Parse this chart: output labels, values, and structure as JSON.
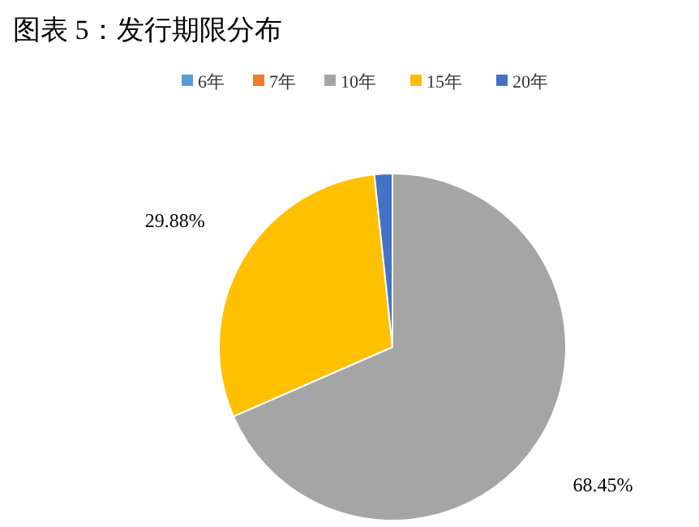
{
  "chart_data": {
    "type": "pie",
    "title": "图表 5：发行期限分布",
    "categories": [
      "6年",
      "7年",
      "10年",
      "15年",
      "20年"
    ],
    "values": [
      0,
      0,
      68.45,
      29.88,
      1.67
    ],
    "colors": [
      "#5b9bd5",
      "#ed7d31",
      "#a5a5a5",
      "#ffc000",
      "#4472c4"
    ],
    "value_labels": [
      null,
      null,
      "68.45%",
      "29.88%",
      null
    ],
    "legend": "top"
  }
}
